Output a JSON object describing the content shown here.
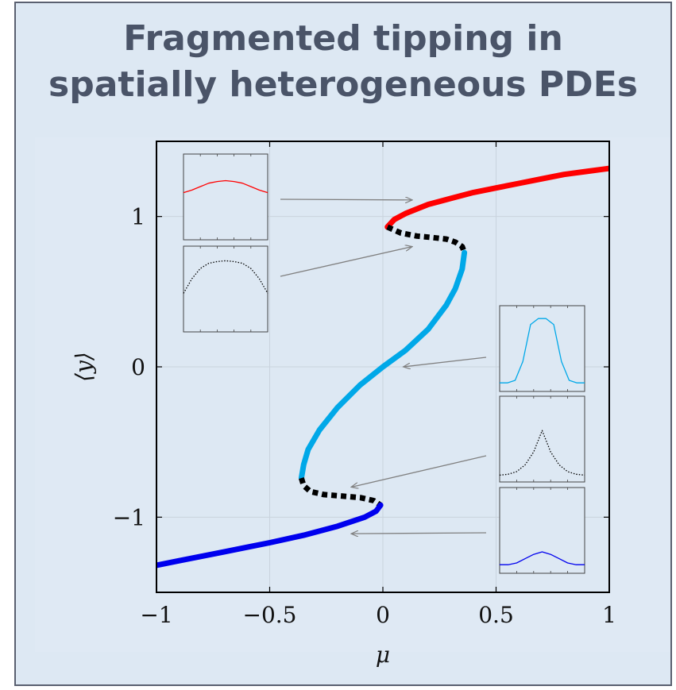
{
  "header": {
    "title_line1": "Fragmented tipping in",
    "title_line2": "spatially heterogeneous PDEs"
  },
  "colors": {
    "background": "#dde8f3",
    "title": "#4a5468",
    "red_branch": "#ff0000",
    "light_blue_branch": "#00a8e8",
    "dark_blue_branch": "#0000ee",
    "unstable": "#000000",
    "arrow": "#808080"
  },
  "chart_data": {
    "type": "line",
    "title": "",
    "xlabel": "μ",
    "ylabel": "⟨y⟩",
    "xlim": [
      -1,
      1
    ],
    "ylim": [
      -1.5,
      1.5
    ],
    "xticks": [
      -1,
      -0.5,
      0,
      0.5,
      1
    ],
    "xtick_labels": [
      "−1",
      "−0.5",
      "0",
      "0.5",
      "1"
    ],
    "yticks": [
      -1,
      0,
      1
    ],
    "ytick_labels": [
      "−1",
      "0",
      "1"
    ],
    "grid": true,
    "legend": "none",
    "series": [
      {
        "style": "solid",
        "color": "#ff0000",
        "x": [
          0.02,
          0.05,
          0.1,
          0.2,
          0.3,
          0.4,
          0.5,
          0.6,
          0.7,
          0.8,
          0.9,
          1.0
        ],
        "y": [
          0.93,
          0.98,
          1.02,
          1.08,
          1.12,
          1.16,
          1.19,
          1.22,
          1.25,
          1.28,
          1.3,
          1.32
        ]
      },
      {
        "style": "dotted",
        "color": "#000000",
        "x": [
          0.02,
          0.08,
          0.15,
          0.22,
          0.28,
          0.32,
          0.35,
          0.36
        ],
        "y": [
          0.93,
          0.89,
          0.87,
          0.86,
          0.85,
          0.83,
          0.8,
          0.76
        ]
      },
      {
        "style": "solid",
        "color": "#00a8e8",
        "x": [
          0.36,
          0.35,
          0.32,
          0.28,
          0.2,
          0.1,
          0.0,
          -0.1,
          -0.2,
          -0.28,
          -0.33,
          -0.35,
          -0.36
        ],
        "y": [
          0.76,
          0.65,
          0.52,
          0.41,
          0.25,
          0.11,
          0.0,
          -0.12,
          -0.27,
          -0.42,
          -0.55,
          -0.65,
          -0.74
        ]
      },
      {
        "style": "dotted",
        "color": "#000000",
        "x": [
          -0.36,
          -0.35,
          -0.32,
          -0.26,
          -0.18,
          -0.1,
          -0.04,
          -0.01
        ],
        "y": [
          -0.74,
          -0.79,
          -0.83,
          -0.85,
          -0.86,
          -0.87,
          -0.89,
          -0.92
        ]
      },
      {
        "style": "solid",
        "color": "#0000ee",
        "x": [
          -0.01,
          -0.03,
          -0.08,
          -0.2,
          -0.35,
          -0.5,
          -0.6,
          -0.7,
          -0.8,
          -0.9,
          -1.0
        ],
        "y": [
          -0.92,
          -0.96,
          -1.0,
          -1.06,
          -1.12,
          -1.17,
          -1.2,
          -1.23,
          -1.26,
          -1.29,
          -1.32
        ]
      }
    ],
    "insets": [
      {
        "name": "inset-red",
        "color": "#ff0000",
        "style": "solid",
        "profile": [
          0.55,
          0.58,
          0.62,
          0.66,
          0.68,
          0.69,
          0.68,
          0.66,
          0.62,
          0.58,
          0.55
        ],
        "arrow_to": [
          0.13,
          1.11
        ]
      },
      {
        "name": "inset-dotted-top",
        "color": "#000000",
        "style": "dotted",
        "profile": [
          0.45,
          0.62,
          0.74,
          0.8,
          0.82,
          0.83,
          0.82,
          0.8,
          0.74,
          0.62,
          0.45
        ],
        "arrow_to": [
          0.13,
          0.8
        ]
      },
      {
        "name": "inset-light-blue",
        "color": "#00a8e8",
        "style": "solid",
        "profile": [
          0.1,
          0.1,
          0.13,
          0.35,
          0.78,
          0.85,
          0.85,
          0.78,
          0.35,
          0.13,
          0.1,
          0.1
        ],
        "arrow_to": [
          0.09,
          0.0
        ]
      },
      {
        "name": "inset-dotted-bottom",
        "color": "#000000",
        "style": "dotted",
        "profile": [
          0.08,
          0.09,
          0.12,
          0.2,
          0.35,
          0.6,
          0.35,
          0.2,
          0.12,
          0.09,
          0.08
        ],
        "arrow_to": [
          -0.14,
          -0.8
        ]
      },
      {
        "name": "inset-dark-blue",
        "color": "#0000ee",
        "style": "solid",
        "profile": [
          0.1,
          0.1,
          0.12,
          0.17,
          0.22,
          0.25,
          0.22,
          0.17,
          0.12,
          0.1,
          0.1
        ],
        "arrow_to": [
          -0.14,
          -1.11
        ]
      }
    ]
  }
}
